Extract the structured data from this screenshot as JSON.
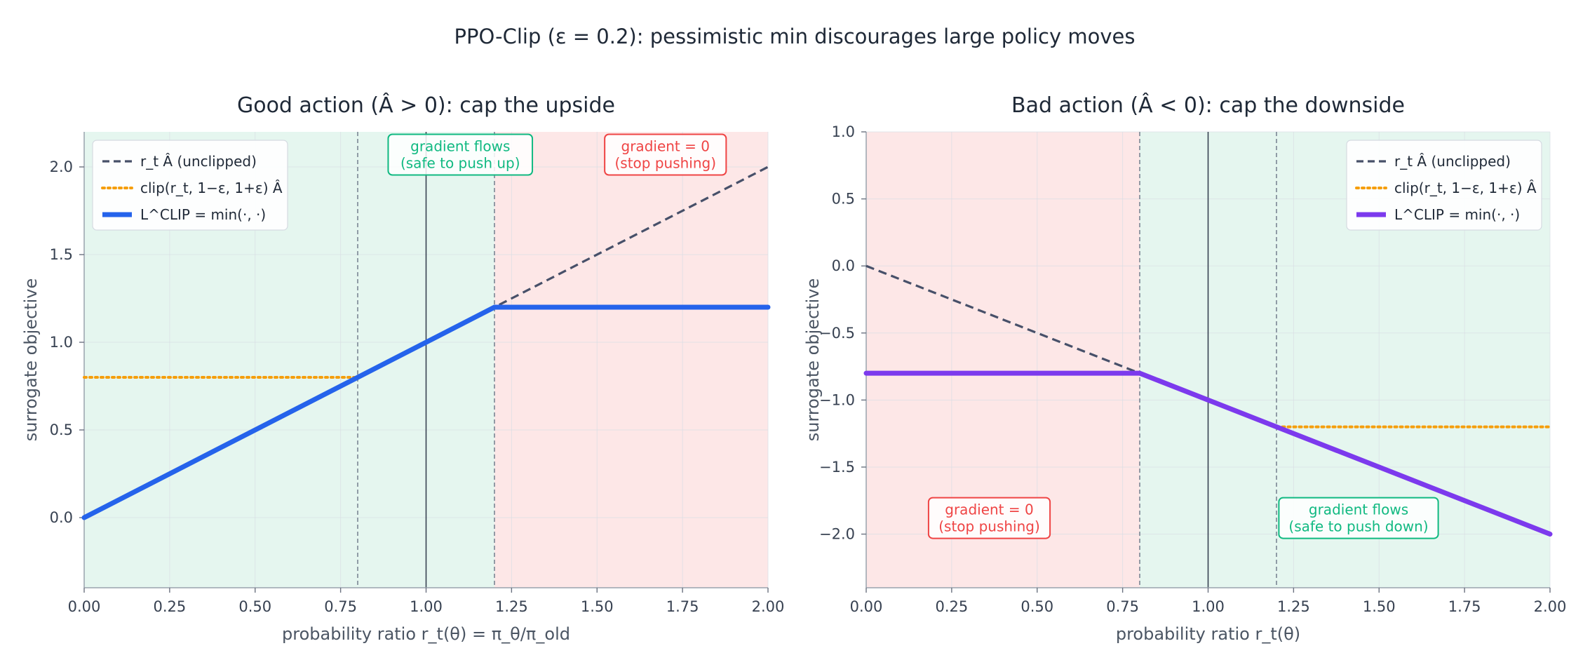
{
  "figure": {
    "suptitle": "PPO-Clip (ε = 0.2): pessimistic min discourages large policy moves"
  },
  "colors": {
    "good_region": "#e5f6ef",
    "bad_region": "#fde7e7",
    "unclipped": "#475069",
    "clip": "#f59e0b",
    "lclip_left": "#2563eb",
    "lclip_right": "#7c3aed",
    "green_text": "#10b981",
    "red_text": "#ef4444"
  },
  "chart_data": [
    {
      "type": "line",
      "title": "Good action (Â > 0): cap the upside",
      "xlabel": "probability ratio r_t(θ) = π_θ/π_old",
      "ylabel": "surrogate objective",
      "xlim": [
        0,
        2
      ],
      "ylim": [
        -0.4,
        2.2
      ],
      "xticks": [
        "0.00",
        "0.25",
        "0.50",
        "0.75",
        "1.00",
        "1.25",
        "1.50",
        "1.75",
        "2.00"
      ],
      "yticks": [
        "0.0",
        "0.5",
        "1.0",
        "1.5",
        "2.0"
      ],
      "xtick_values": [
        0,
        0.25,
        0.5,
        0.75,
        1.0,
        1.25,
        1.5,
        1.75,
        2.0
      ],
      "ytick_values": [
        0,
        0.5,
        1.0,
        1.5,
        2.0
      ],
      "grid": true,
      "legend_position": "top-left",
      "regions": [
        {
          "from": 0,
          "to": 1.2,
          "kind": "good"
        },
        {
          "from": 1.2,
          "to": 2.0,
          "kind": "bad"
        }
      ],
      "vlines": [
        {
          "x": 0.8,
          "style": "dashed"
        },
        {
          "x": 1.0,
          "style": "solid"
        },
        {
          "x": 1.2,
          "style": "dashed"
        }
      ],
      "series": [
        {
          "name": "r_t Â (unclipped)",
          "style": "dashed",
          "color_key": "unclipped",
          "x": [
            0,
            2
          ],
          "y": [
            0,
            2
          ]
        },
        {
          "name": "clip(r_t, 1−ε, 1+ε) Â",
          "style": "dotted",
          "color_key": "clip",
          "x": [
            0,
            0.8,
            1.2,
            2.0
          ],
          "y": [
            0.8,
            0.8,
            1.2,
            1.2
          ]
        },
        {
          "name": "L^CLIP = min(·, ·)",
          "style": "thick",
          "color_key": "lclip_left",
          "x": [
            0,
            1.2,
            2.0
          ],
          "y": [
            0,
            1.2,
            1.2
          ]
        }
      ],
      "annotations": [
        {
          "lines": [
            "gradient flows",
            "(safe to push up)"
          ],
          "x": 1.1,
          "y": 2.07,
          "kind": "good"
        },
        {
          "lines": [
            "gradient = 0",
            "(stop pushing)"
          ],
          "x": 1.7,
          "y": 2.07,
          "kind": "bad"
        }
      ]
    },
    {
      "type": "line",
      "title": "Bad action (Â < 0): cap the downside",
      "xlabel": "probability ratio r_t(θ)",
      "ylabel": "surrogate objective",
      "xlim": [
        0,
        2
      ],
      "ylim": [
        -2.4,
        1.0
      ],
      "xticks": [
        "0.00",
        "0.25",
        "0.50",
        "0.75",
        "1.00",
        "1.25",
        "1.50",
        "1.75",
        "2.00"
      ],
      "yticks": [
        "1.0",
        "0.5",
        "0.0",
        "−0.5",
        "−1.0",
        "−1.5",
        "−2.0"
      ],
      "xtick_values": [
        0,
        0.25,
        0.5,
        0.75,
        1.0,
        1.25,
        1.5,
        1.75,
        2.0
      ],
      "ytick_values": [
        1.0,
        0.5,
        0.0,
        -0.5,
        -1.0,
        -1.5,
        -2.0
      ],
      "grid": true,
      "legend_position": "top-right",
      "regions": [
        {
          "from": 0,
          "to": 0.8,
          "kind": "bad"
        },
        {
          "from": 0.8,
          "to": 2.0,
          "kind": "good"
        }
      ],
      "vlines": [
        {
          "x": 0.8,
          "style": "dashed"
        },
        {
          "x": 1.0,
          "style": "solid"
        },
        {
          "x": 1.2,
          "style": "dashed"
        }
      ],
      "series": [
        {
          "name": "r_t Â (unclipped)",
          "style": "dashed",
          "color_key": "unclipped",
          "x": [
            0,
            2
          ],
          "y": [
            0,
            -2
          ]
        },
        {
          "name": "clip(r_t, 1−ε, 1+ε) Â",
          "style": "dotted",
          "color_key": "clip",
          "x": [
            0,
            0.8,
            1.2,
            2.0
          ],
          "y": [
            -0.8,
            -0.8,
            -1.2,
            -1.2
          ]
        },
        {
          "name": "L^CLIP = min(·, ·)",
          "style": "thick",
          "color_key": "lclip_right",
          "x": [
            0,
            0.8,
            2.0
          ],
          "y": [
            -0.8,
            -0.8,
            -2.0
          ]
        }
      ],
      "annotations": [
        {
          "lines": [
            "gradient = 0",
            "(stop pushing)"
          ],
          "x": 0.36,
          "y": -1.88,
          "kind": "bad"
        },
        {
          "lines": [
            "gradient flows",
            "(safe to push down)"
          ],
          "x": 1.44,
          "y": -1.88,
          "kind": "good"
        }
      ]
    }
  ]
}
